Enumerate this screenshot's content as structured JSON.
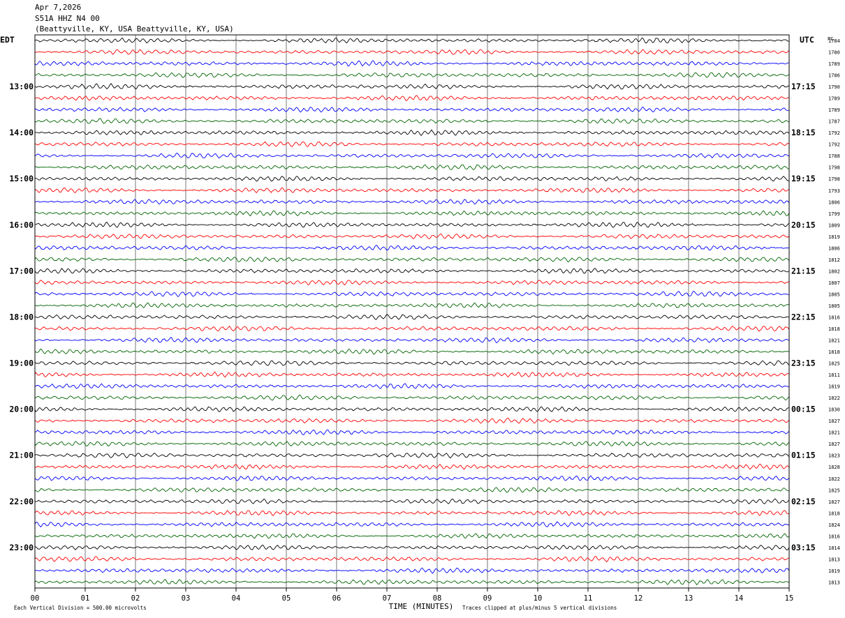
{
  "header": {
    "date": "Apr 7,2026",
    "station": "S51A HHZ N4 00",
    "location": "(Beattyville, KY, USA Beattyville, KY, USA)"
  },
  "chart_data": {
    "type": "line",
    "title": "Apr 7,2026",
    "xlabel": "TIME (MINUTES)",
    "left_timezone": "EDT",
    "right_timezone": "UTC",
    "pc_header": "PC",
    "xlim": [
      0,
      15
    ],
    "x_ticks": [
      "00",
      "01",
      "02",
      "03",
      "04",
      "05",
      "06",
      "07",
      "08",
      "09",
      "10",
      "11",
      "12",
      "13",
      "14",
      "15"
    ],
    "trace_colors": [
      "#000000",
      "#ff0000",
      "#0000ff",
      "#006400"
    ],
    "rows_per_hour": 4,
    "hours_edt": [
      "13:00",
      "14:00",
      "15:00",
      "16:00",
      "17:00",
      "18:00",
      "19:00",
      "20:00",
      "21:00",
      "22:00",
      "23:00"
    ],
    "hours_utc": [
      "17:15",
      "18:15",
      "19:15",
      "20:15",
      "21:15",
      "22:15",
      "23:15",
      "00:15",
      "01:15",
      "02:15",
      "03:15"
    ],
    "trace_values": [
      "1784",
      "1780",
      "1789",
      "1786",
      "1790",
      "1789",
      "1789",
      "1787",
      "1792",
      "1792",
      "1788",
      "1798",
      "1798",
      "1793",
      "1806",
      "1799",
      "1809",
      "1819",
      "1806",
      "1812",
      "1802",
      "1807",
      "1805",
      "1805",
      "1816",
      "1818",
      "1821",
      "1818",
      "1825",
      "1811",
      "1819",
      "1822",
      "1830",
      "1827",
      "1821",
      "1827",
      "1823",
      "1828",
      "1822",
      "1825",
      "1827",
      "1818",
      "1824",
      "1816",
      "1814",
      "1813",
      "1819",
      "1813"
    ],
    "footer": {
      "scale": "Each Vertical Division =  500.00 microvolts",
      "clipping": "Traces clipped at plus/minus 5 vertical divisions"
    }
  }
}
